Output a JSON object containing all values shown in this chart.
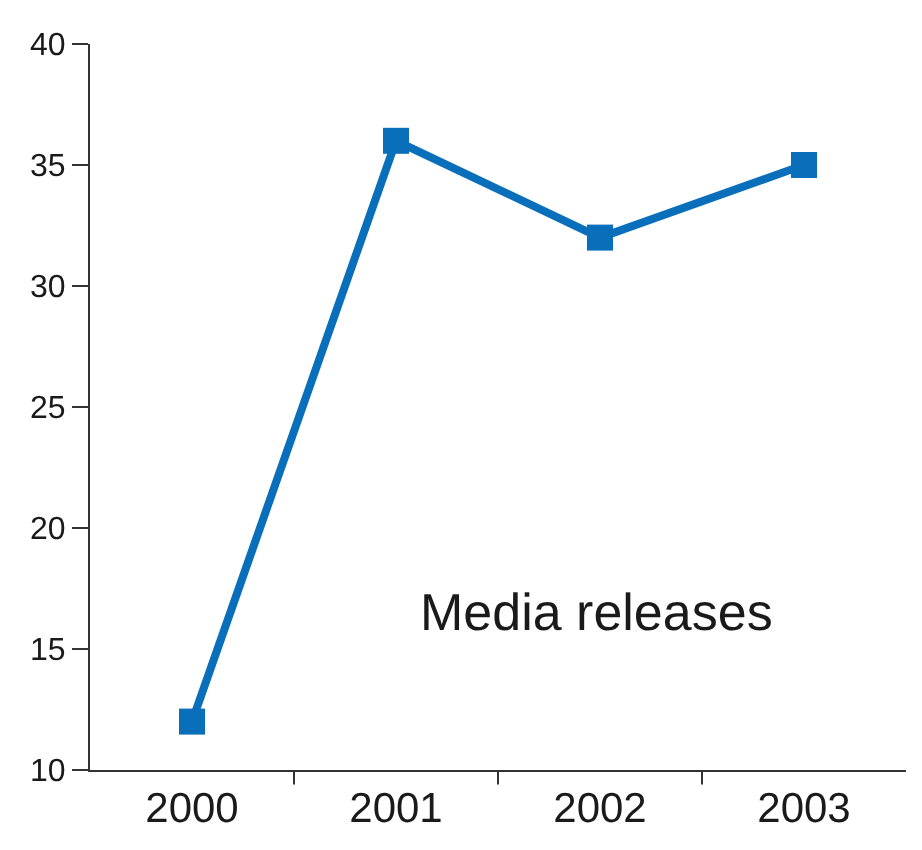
{
  "chart_data": {
    "type": "line",
    "categories": [
      "2000",
      "2001",
      "2002",
      "2003"
    ],
    "series": [
      {
        "name": "Media releases",
        "color": "#0a6fba",
        "values": [
          12,
          36,
          32,
          35
        ]
      }
    ],
    "ylim": [
      10,
      40
    ],
    "yticks": [
      10,
      15,
      20,
      25,
      30,
      35,
      40
    ],
    "grid": false,
    "legend": false,
    "marker": "square",
    "line_style": "solid"
  }
}
